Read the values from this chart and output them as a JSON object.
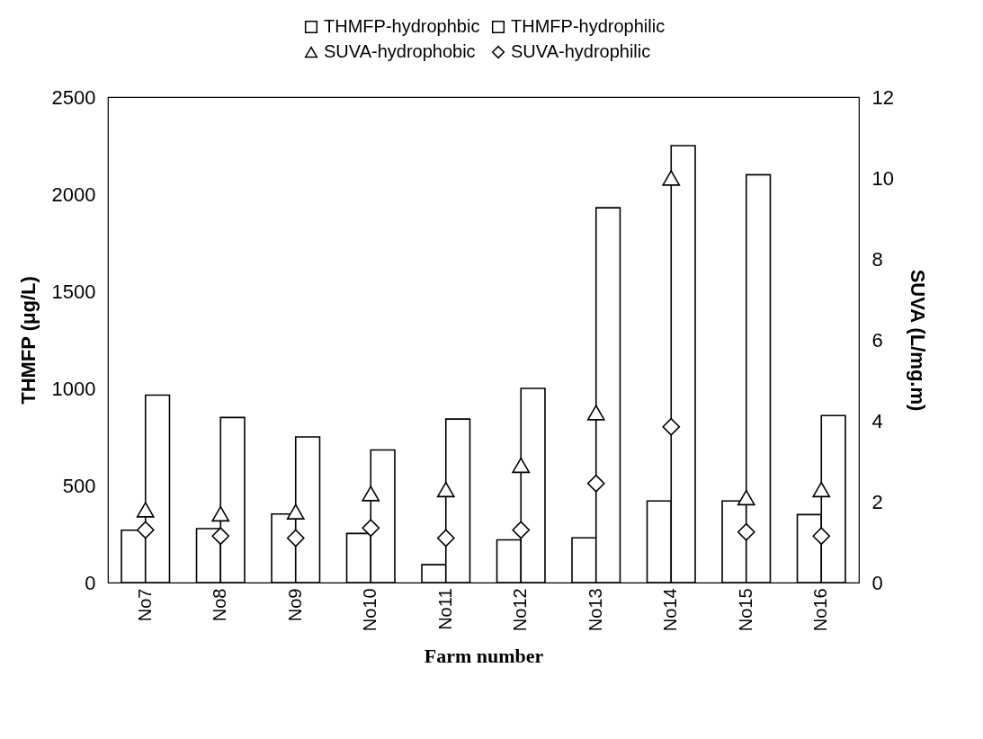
{
  "chart_data": {
    "type": "bar",
    "xlabel": "Farm number",
    "ylabel": "THMFP (μg/L)",
    "y2label": "SUVA (L/mg.m)",
    "categories": [
      "No7",
      "No8",
      "No9",
      "No10",
      "No11",
      "No12",
      "No13",
      "No14",
      "No15",
      "No16"
    ],
    "series": [
      {
        "name": "THMFP-hydrophbic",
        "color": "#000000",
        "values": [
          270,
          278,
          353,
          253,
          92,
          220,
          230,
          420,
          420,
          350
        ]
      },
      {
        "name": "THMFP-hydrophilic",
        "color": "#000000",
        "values": [
          965,
          850,
          750,
          683,
          842,
          1000,
          1930,
          2250,
          2100,
          860
        ]
      },
      {
        "name": "SUVA-hydrophobic",
        "type": "scatter",
        "axis": "y2",
        "marker": "triangle",
        "color": "#000000",
        "values": [
          1.8,
          1.7,
          1.75,
          2.2,
          2.3,
          2.9,
          4.2,
          10.0,
          2.1,
          2.3
        ]
      },
      {
        "name": "SUVA-hydrophilic",
        "type": "scatter",
        "axis": "y2",
        "marker": "diamond",
        "color": "#000000",
        "values": [
          1.3,
          1.15,
          1.1,
          1.35,
          1.1,
          1.3,
          2.45,
          3.85,
          1.25,
          1.15
        ]
      }
    ],
    "ylim": [
      0,
      2500
    ],
    "yticks": [
      0,
      500,
      1000,
      1500,
      2000,
      2500
    ],
    "y2lim": [
      0,
      12
    ],
    "y2ticks": [
      0,
      2,
      4,
      6,
      8,
      10,
      12
    ],
    "grid": false,
    "legend": "top"
  }
}
